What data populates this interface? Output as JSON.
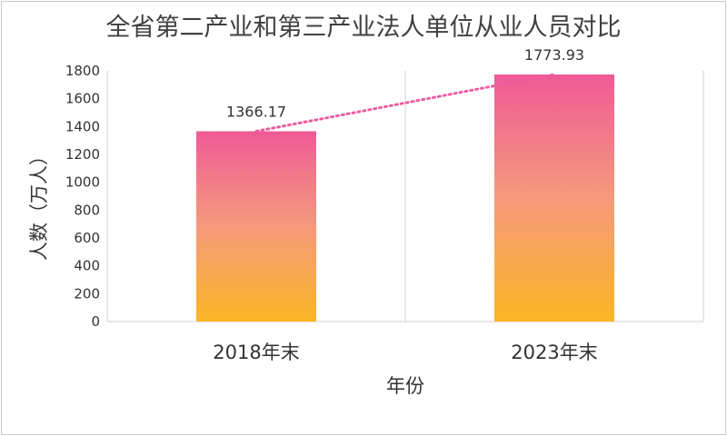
{
  "chart_data": {
    "type": "bar",
    "title": "全省第二产业和第三产业法人单位从业人员对比",
    "xlabel": "年份",
    "ylabel": "人数（万人）",
    "categories": [
      "2018年末",
      "2023年末"
    ],
    "values": [
      1366.17,
      1773.93
    ],
    "data_labels": [
      "1366.17",
      "1773.93"
    ],
    "ylim": [
      0,
      1800
    ],
    "yticks": [
      "0",
      "200",
      "400",
      "600",
      "800",
      "1000",
      "1200",
      "1400",
      "1600",
      "1800"
    ],
    "grid": true,
    "legend": "none",
    "trendline": "dotted",
    "colors": {
      "bar_top": "#ef5a96",
      "bar_bottom": "#fbb524",
      "trendline": "#ef5aa0",
      "axis": "#d0d0d0"
    }
  }
}
